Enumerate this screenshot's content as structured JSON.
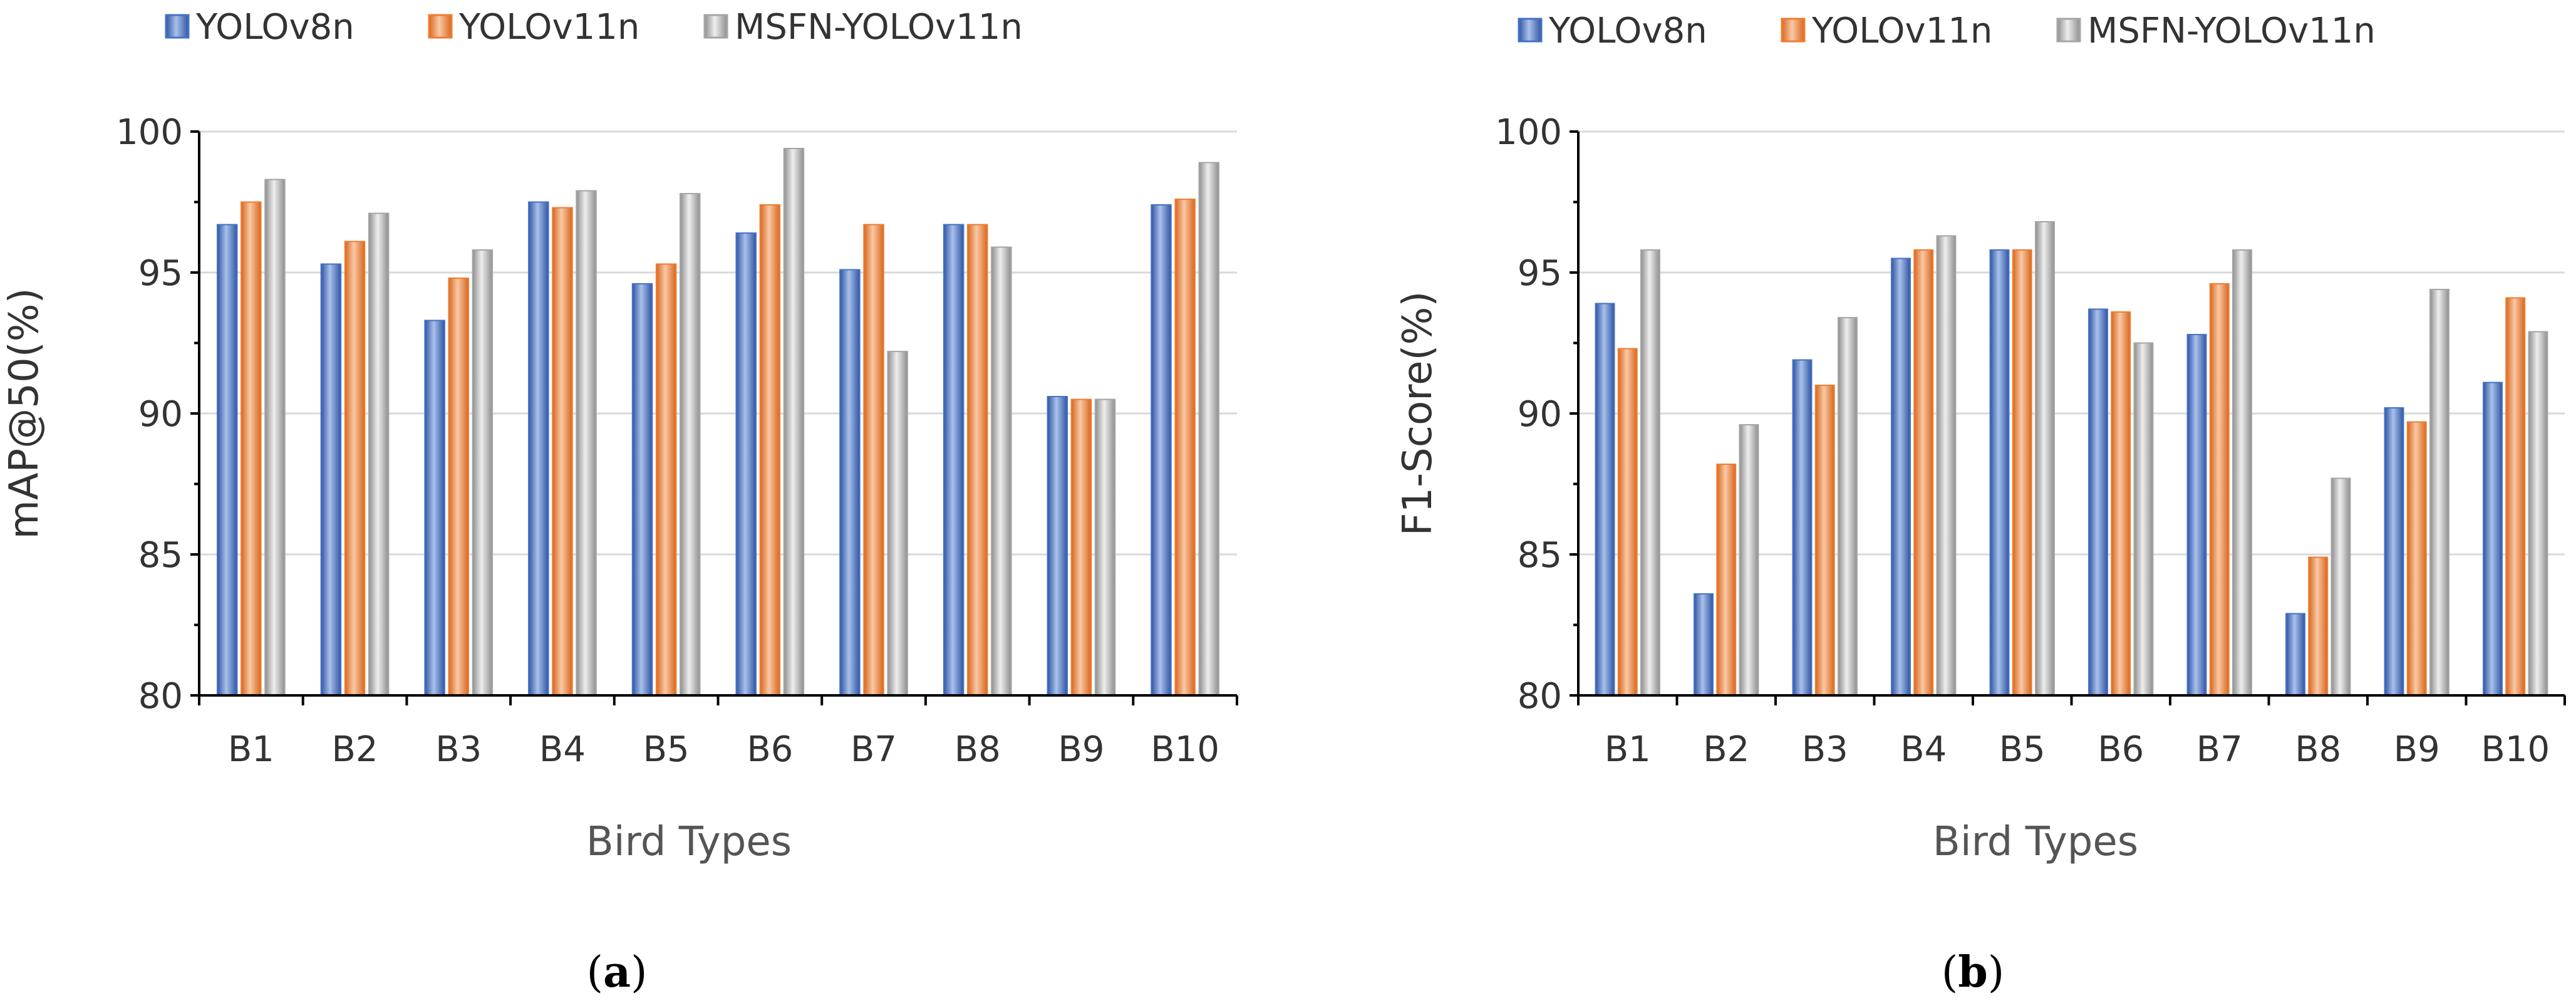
{
  "chart_data": [
    {
      "type": "bar",
      "panel_label": "b",
      "categories": [
        "B1",
        "B2",
        "B3",
        "B4",
        "B5",
        "B6",
        "B7",
        "B8",
        "B9",
        "B10"
      ],
      "series": [
        {
          "name": "YOLOv8n",
          "values": [
            96.7,
            95.3,
            93.3,
            97.5,
            94.6,
            96.4,
            95.1,
            96.7,
            90.6,
            97.4
          ]
        },
        {
          "name": "YOLOv11n",
          "values": [
            97.5,
            96.1,
            94.8,
            97.3,
            95.3,
            97.4,
            96.7,
            96.7,
            90.5,
            97.6
          ]
        },
        {
          "name": "MSFN-YOLOv11n",
          "values": [
            98.3,
            97.1,
            95.8,
            97.9,
            97.8,
            99.4,
            92.2,
            95.9,
            90.5,
            98.9
          ]
        }
      ],
      "xlabel": "Bird Types",
      "ylabel": "mAP@50(%)",
      "ylim": [
        80,
        100
      ],
      "yticks": [
        "80",
        "85",
        "90",
        "95",
        "100"
      ],
      "grid": true,
      "legend_position": "top"
    },
    {
      "type": "bar",
      "panel_label": "b",
      "categories": [
        "B1",
        "B2",
        "B3",
        "B4",
        "B5",
        "B6",
        "B7",
        "B8",
        "B9",
        "B10"
      ],
      "series": [
        {
          "name": "YOLOv8n",
          "values": [
            93.9,
            83.6,
            91.9,
            95.5,
            95.8,
            93.7,
            92.8,
            82.9,
            90.2,
            91.1
          ]
        },
        {
          "name": "YOLOv11n",
          "values": [
            92.3,
            88.2,
            91.0,
            95.8,
            95.8,
            93.6,
            94.6,
            84.9,
            89.7,
            94.1
          ]
        },
        {
          "name": "MSFN-YOLOv11n",
          "values": [
            95.8,
            89.6,
            93.4,
            96.3,
            96.8,
            92.5,
            95.8,
            87.7,
            94.4,
            92.9
          ]
        }
      ],
      "xlabel": "Bird Types",
      "ylabel": "F1-Score(%)",
      "ylim": [
        80,
        100
      ],
      "yticks": [
        "80",
        "85",
        "90",
        "95",
        "100"
      ],
      "grid": true,
      "legend_position": "top"
    }
  ],
  "panel_labels": {
    "a": "a",
    "b": "b"
  },
  "colors": {
    "YOLOv8n": "#4472C4",
    "YOLOv11n": "#ED7D31",
    "MSFN-YOLOv11n": "#A5A5A5"
  }
}
